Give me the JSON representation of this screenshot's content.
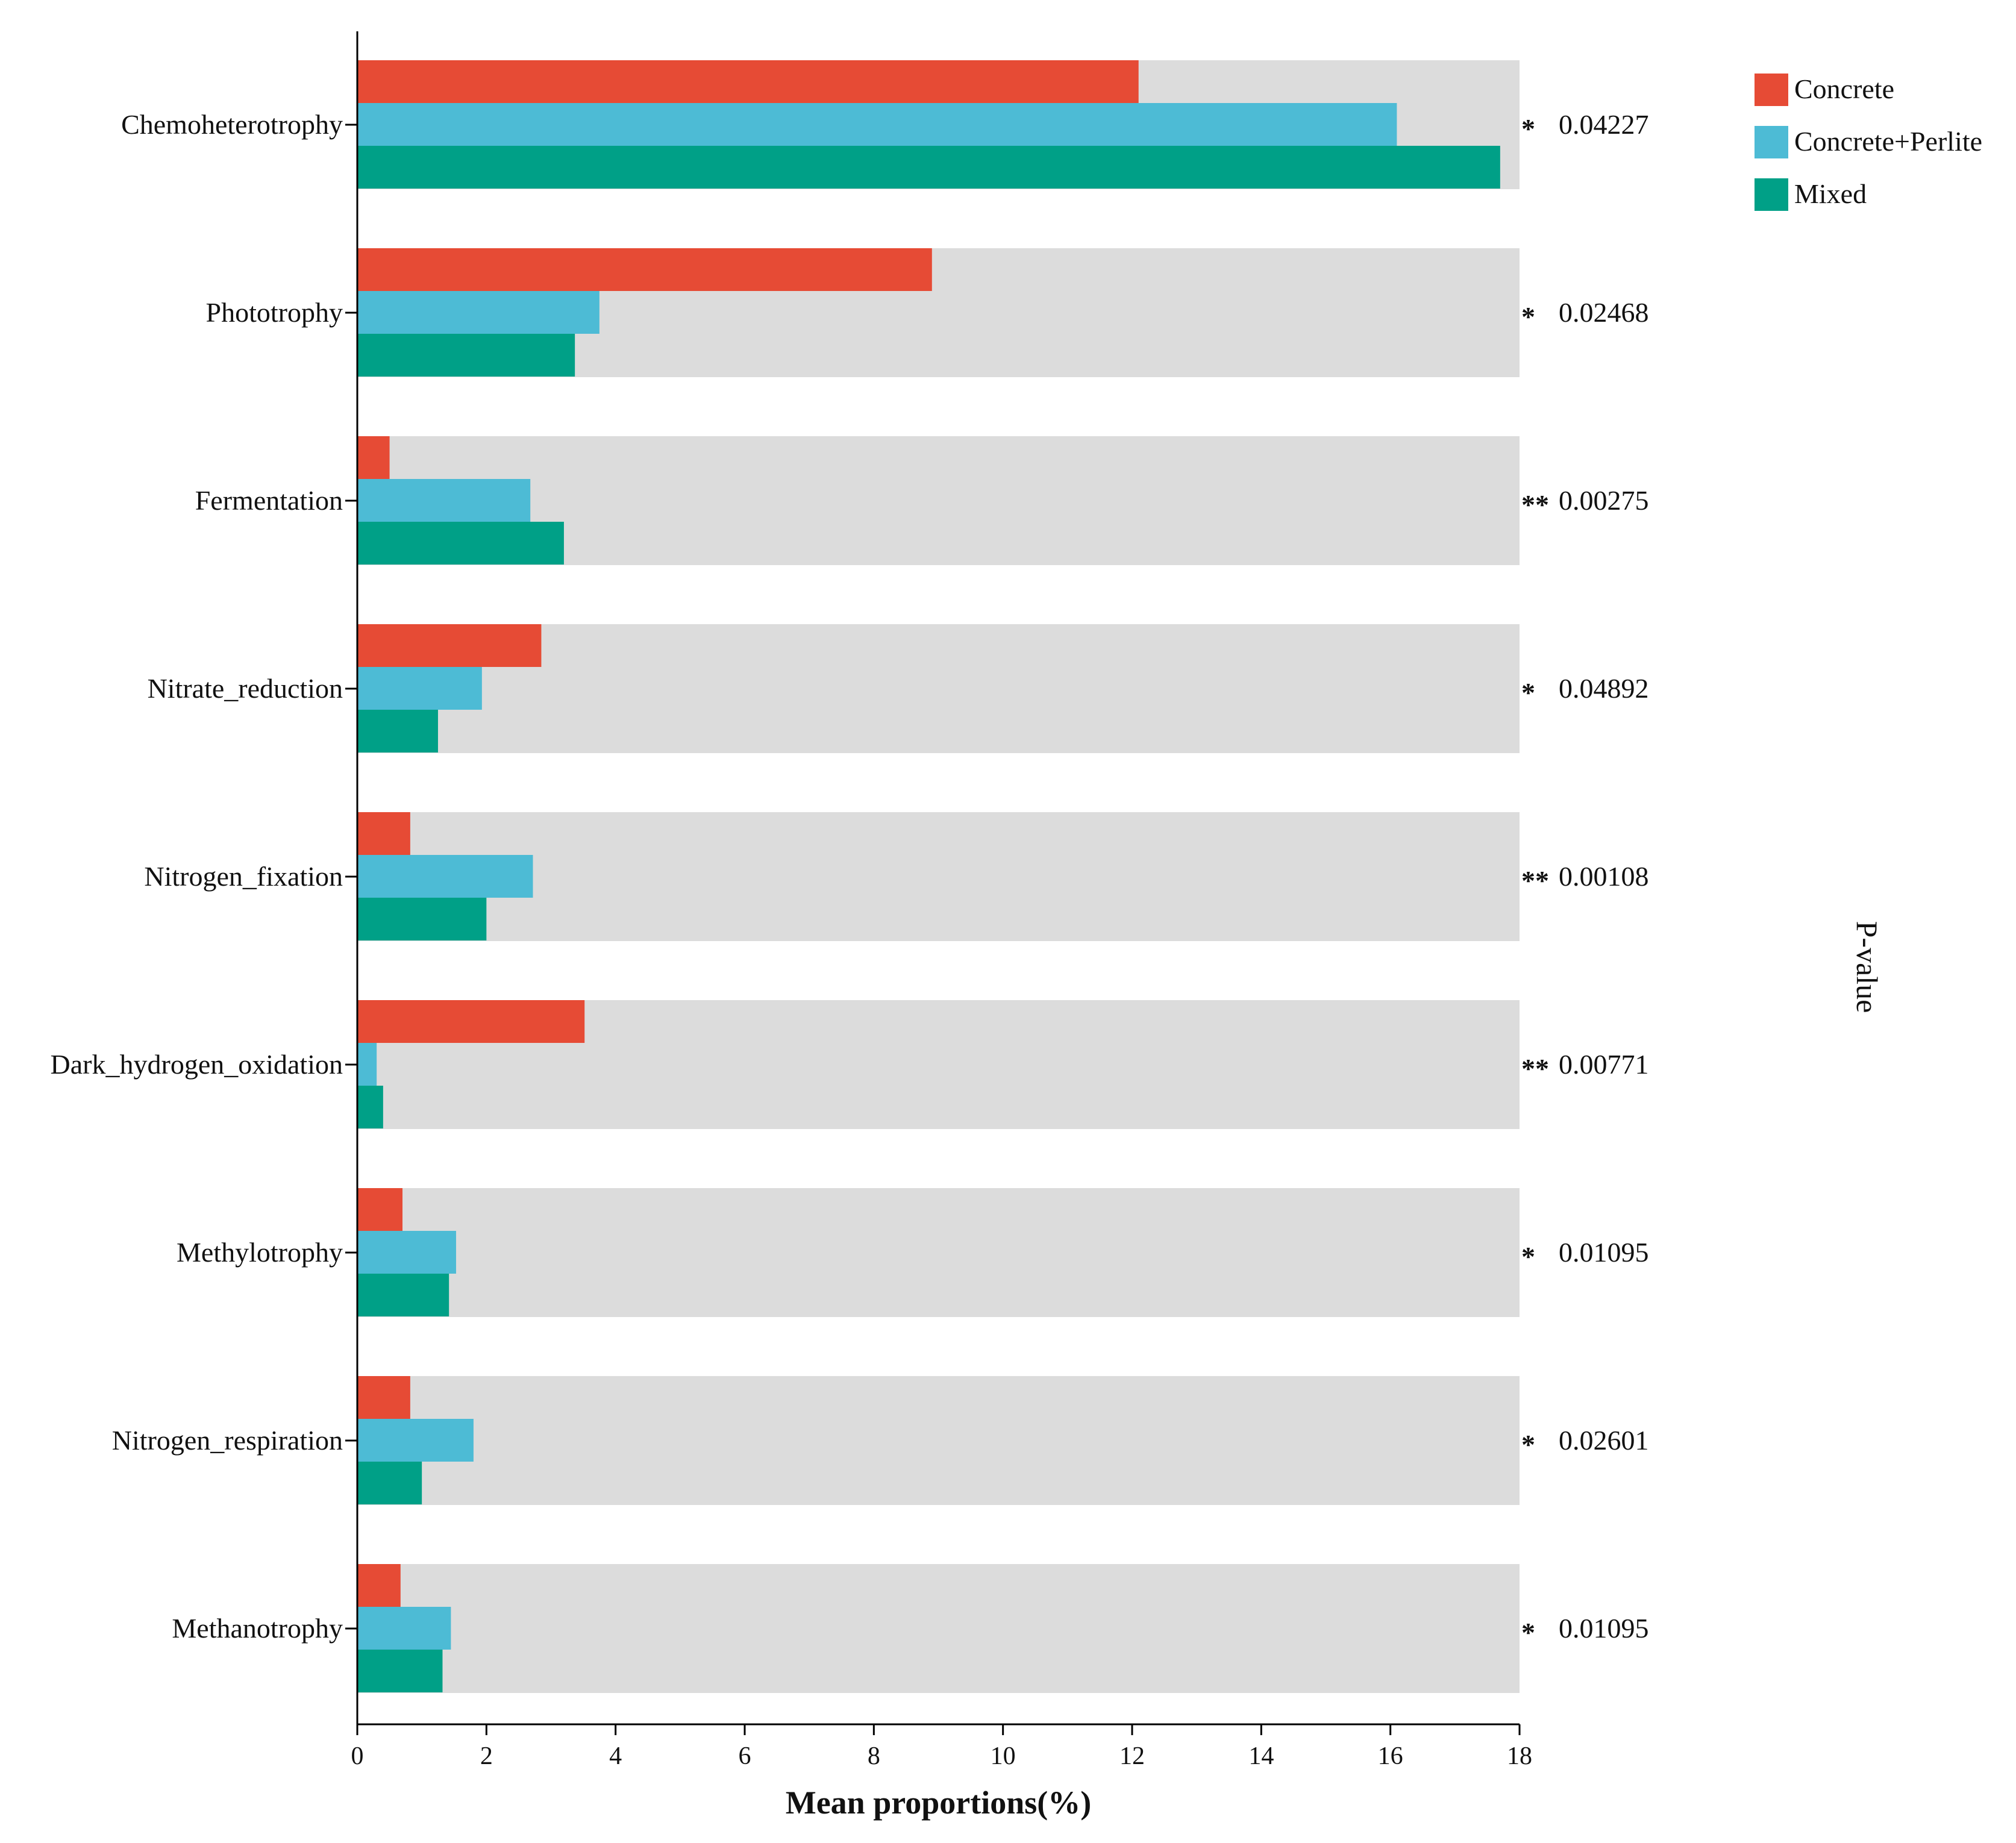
{
  "chart_data": {
    "type": "bar",
    "orientation": "horizontal",
    "categories": [
      "Chemoheterotrophy",
      "Phototrophy",
      "Fermentation",
      "Nitrate_reduction",
      "Nitrogen_fixation",
      "Dark_hydrogen_oxidation",
      "Methylotrophy",
      "Nitrogen_respiration",
      "Methanotrophy"
    ],
    "series": [
      {
        "name": "Concrete",
        "color": "#e64b35",
        "values": [
          12.1,
          8.9,
          0.5,
          2.85,
          0.82,
          3.52,
          0.7,
          0.82,
          0.67
        ]
      },
      {
        "name": "Concrete+Perlite",
        "color": "#4dbbd5",
        "values": [
          16.1,
          3.75,
          2.68,
          1.93,
          2.72,
          0.3,
          1.53,
          1.8,
          1.45
        ]
      },
      {
        "name": "Mixed",
        "color": "#00a087",
        "values": [
          17.7,
          3.37,
          3.2,
          1.25,
          2.0,
          0.4,
          1.42,
          1.0,
          1.32
        ]
      }
    ],
    "significance": [
      "*",
      "*",
      "**",
      "*",
      "**",
      "**",
      "*",
      "*",
      "*"
    ],
    "p_values": [
      "0.04227",
      "0.02468",
      "0.00275",
      "0.04892",
      "0.00108",
      "0.00771",
      "0.01095",
      "0.02601",
      "0.01095"
    ],
    "xlabel": "Mean proportions(%)",
    "ylabel": "",
    "right_axis_title": "P-value",
    "xlim": [
      0,
      18
    ],
    "xticks": [
      "0",
      "2",
      "4",
      "6",
      "8",
      "10",
      "12",
      "14",
      "16",
      "18"
    ],
    "legend_position": "top-right",
    "background_band_color": "#dcdcdc",
    "grid": false
  }
}
